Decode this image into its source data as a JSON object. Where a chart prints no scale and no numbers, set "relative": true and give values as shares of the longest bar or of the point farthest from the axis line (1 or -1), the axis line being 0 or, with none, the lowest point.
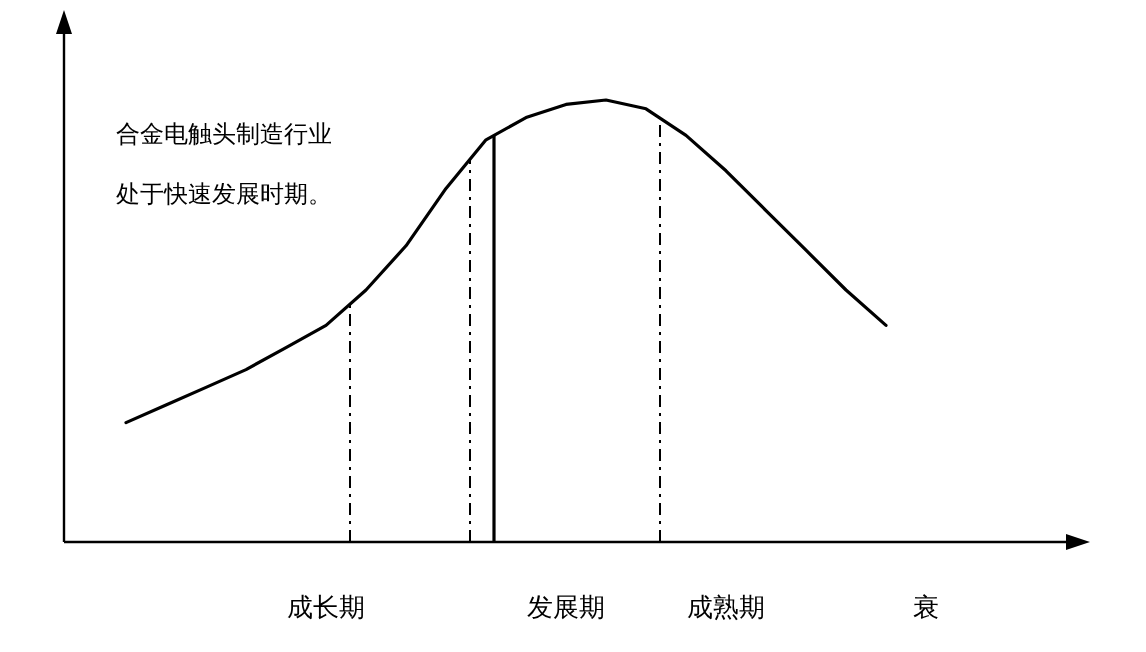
{
  "chart_data": {
    "type": "line",
    "relative": true,
    "categories": [
      null,
      null,
      null,
      null,
      null,
      "成长期",
      null,
      null,
      null,
      null,
      null,
      "发展期",
      null,
      null,
      null,
      "成熟期",
      null,
      null,
      null,
      null,
      "衰"
    ],
    "series": [
      {
        "color": "#000000",
        "values": [
          0.27,
          0.31,
          0.35,
          0.39,
          0.44,
          0.49,
          0.57,
          0.67,
          0.8,
          0.91,
          0.96,
          0.99,
          1,
          0.98,
          0.92,
          0.84,
          0.75,
          0.66,
          0.57,
          0.49,
          null
        ]
      }
    ],
    "annotations": [
      "合金电触头制造行业",
      "处于快速发展时期。"
    ],
    "marker": "none"
  }
}
